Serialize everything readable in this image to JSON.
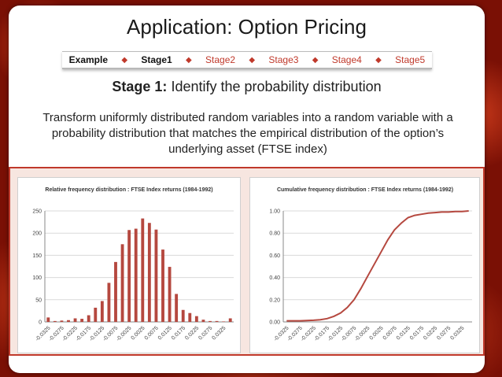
{
  "slide": {
    "title": "Application: Option Pricing",
    "nav": [
      {
        "label": "Example",
        "bold": true
      },
      {
        "label": "Stage1",
        "bold": true
      },
      {
        "label": "Stage2",
        "bold": false
      },
      {
        "label": "Stage3",
        "bold": false
      },
      {
        "label": "Stage4",
        "bold": false
      },
      {
        "label": "Stage5",
        "bold": false
      }
    ],
    "stage_heading_bold": "Stage 1:",
    "stage_heading_rest": " Identify the probability distribution",
    "description": "Transform uniformly distributed random variables into a random variable with a probability distribution that matches the empirical distribution of the option’s underlying asset (FTSE index)"
  },
  "chart_data": [
    {
      "type": "bar",
      "title": "Relative frequency distribution : FTSE Index returns (1984-1992)",
      "color": "#b5483f",
      "ylim": [
        0,
        250
      ],
      "yticks": [
        "0",
        "50",
        "100",
        "150",
        "200",
        "250"
      ],
      "xticklabels": [
        "-0.0325",
        "-0.0275",
        "-0.0225",
        "-0.0175",
        "-0.0125",
        "-0.0075",
        "-0.0025",
        "0.0025",
        "0.0075",
        "0.0125",
        "0.0175",
        "0.0225",
        "0.0275",
        "0.0325"
      ],
      "values": [
        10,
        2,
        3,
        4,
        8,
        7,
        15,
        32,
        47,
        88,
        135,
        175,
        207,
        210,
        233,
        223,
        208,
        163,
        124,
        63,
        27,
        20,
        13,
        5,
        2,
        2,
        1,
        8
      ]
    },
    {
      "type": "line",
      "title": "Cumulative frequency distribution : FTSE Index returns (1984-1992)",
      "color": "#b5483f",
      "ylim": [
        0,
        1
      ],
      "yticks": [
        "0.00",
        "0.20",
        "0.40",
        "0.60",
        "0.80",
        "1.00"
      ],
      "xticklabels": [
        "-0.0325",
        "-0.0275",
        "-0.0225",
        "-0.0175",
        "-0.0125",
        "-0.0075",
        "-0.0025",
        "0.0025",
        "0.0075",
        "0.0125",
        "0.0175",
        "0.0225",
        "0.0275",
        "0.0325"
      ],
      "values": [
        0.01,
        0.01,
        0.01,
        0.012,
        0.015,
        0.02,
        0.03,
        0.05,
        0.08,
        0.13,
        0.2,
        0.3,
        0.41,
        0.52,
        0.63,
        0.74,
        0.83,
        0.89,
        0.94,
        0.96,
        0.97,
        0.98,
        0.985,
        0.99,
        0.99,
        0.995,
        0.995,
        1.0
      ]
    }
  ]
}
